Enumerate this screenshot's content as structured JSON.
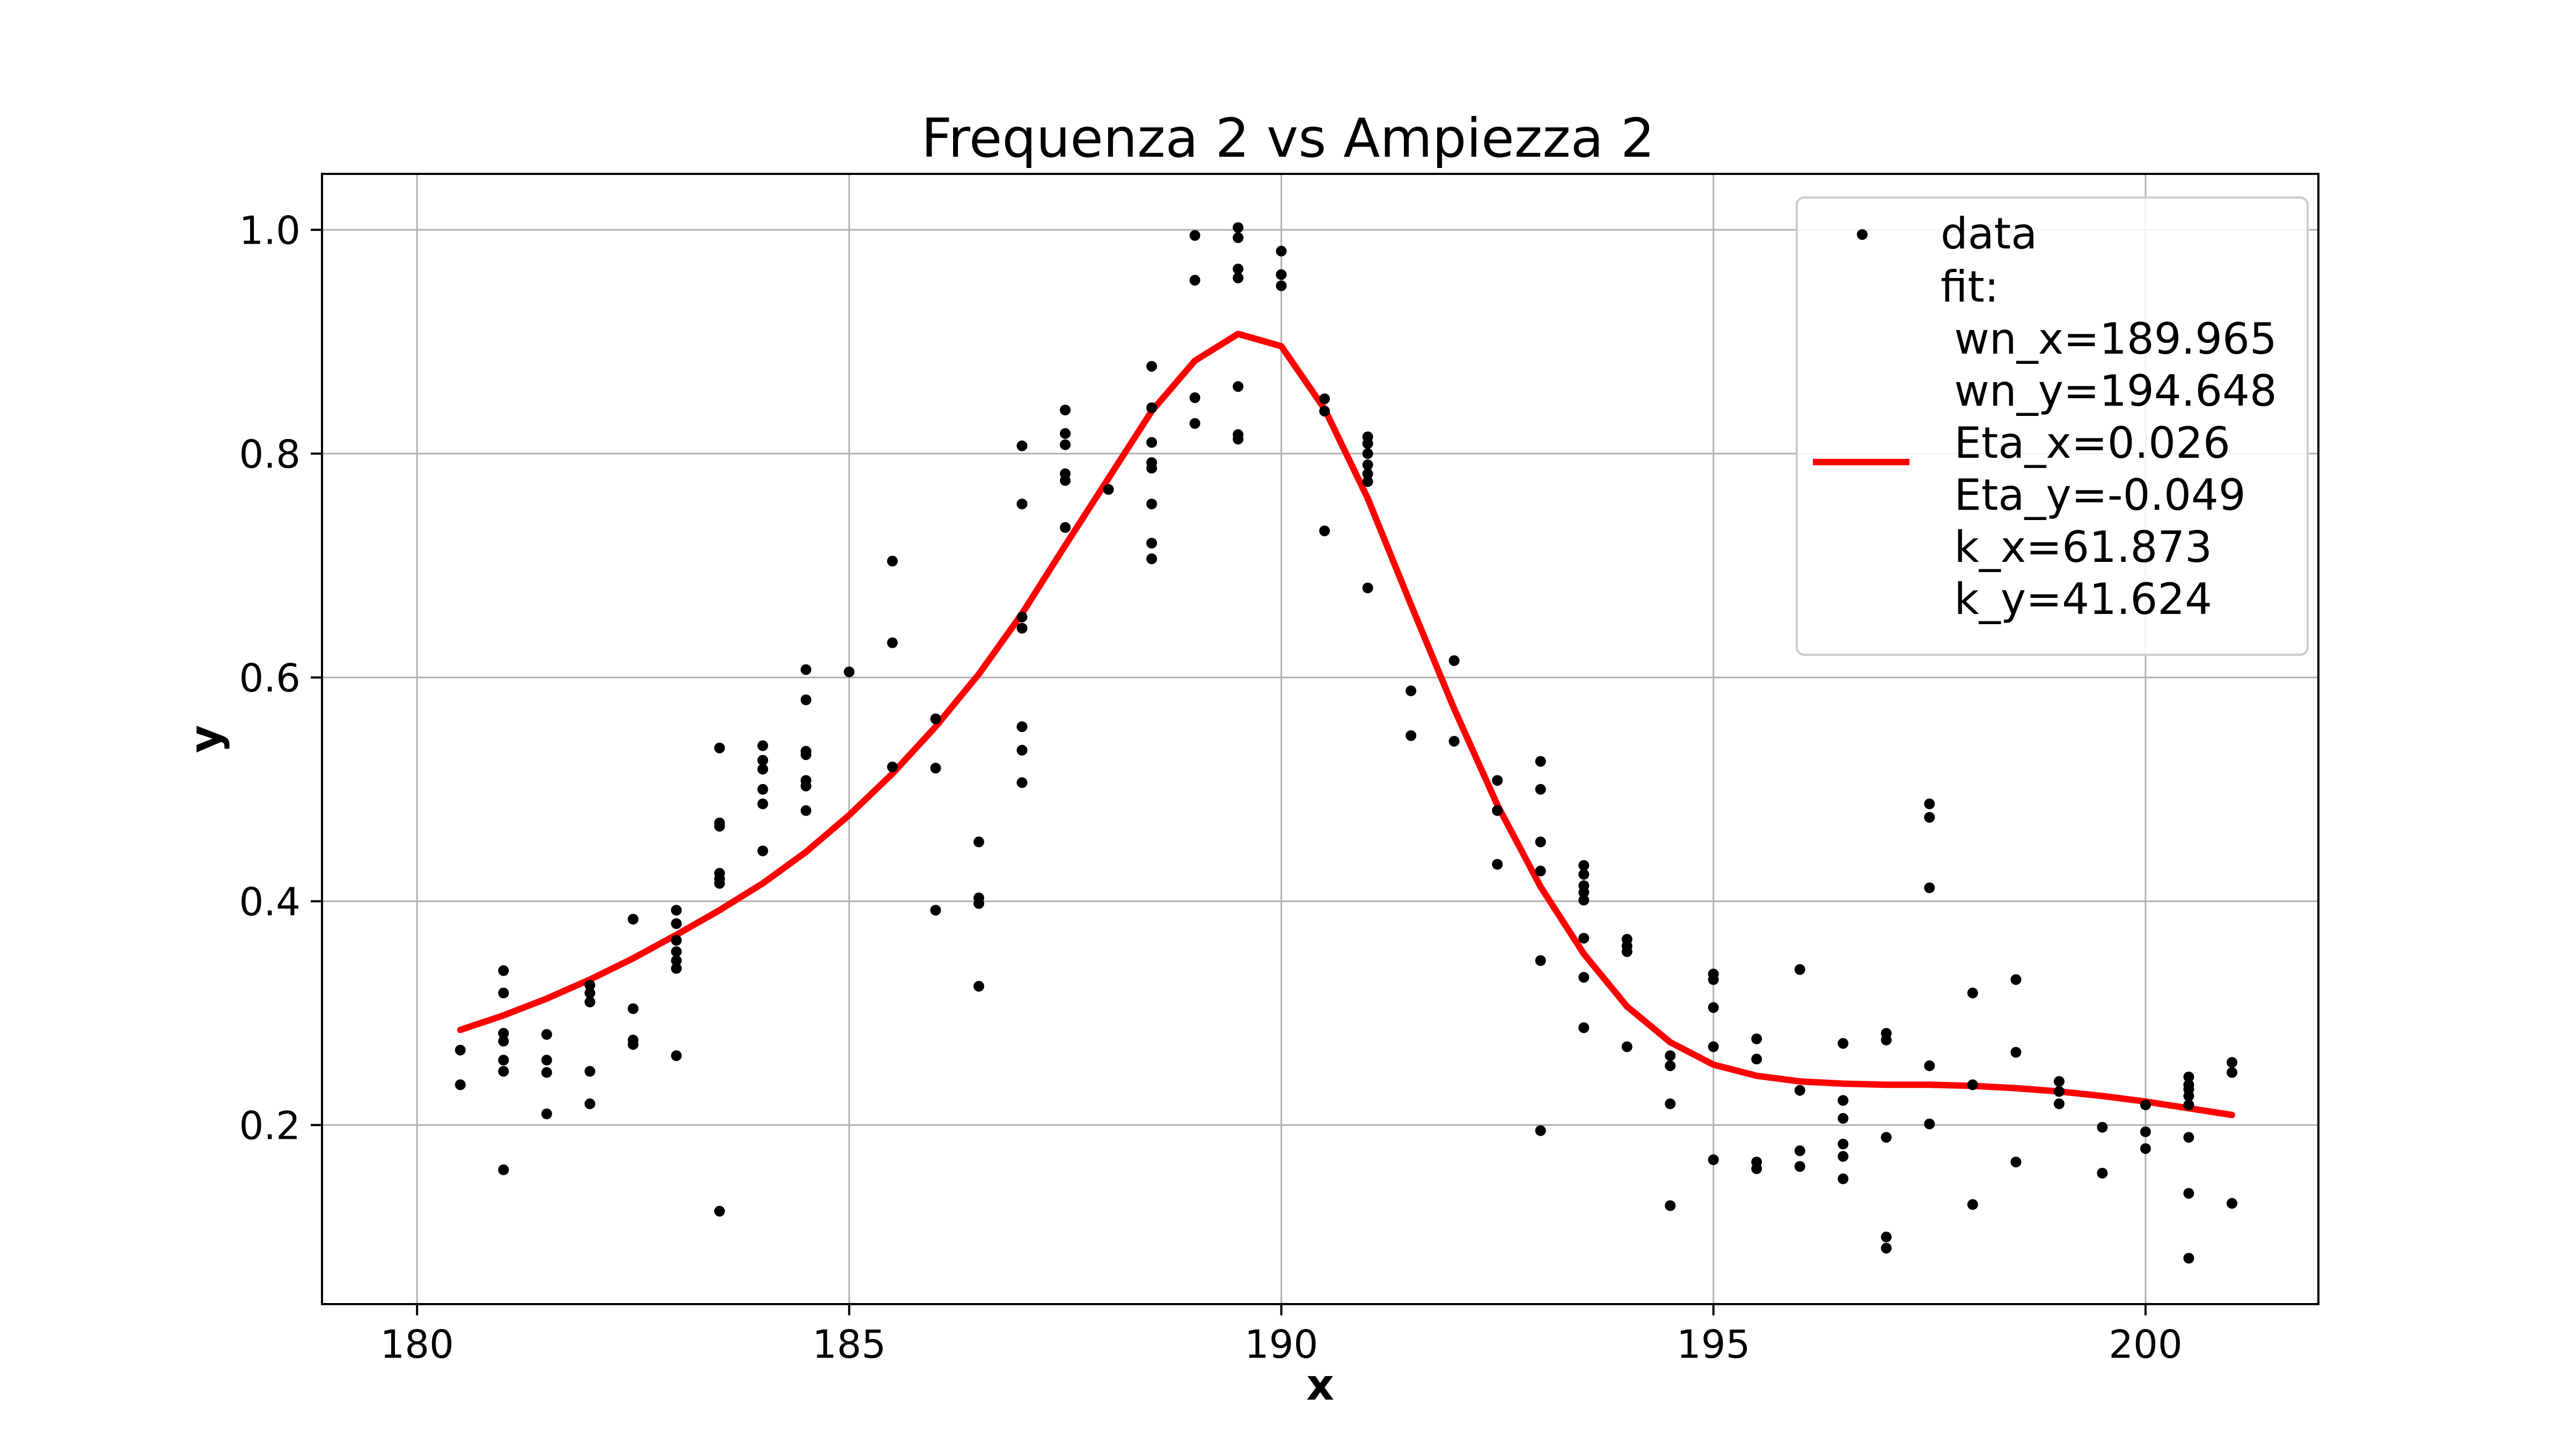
{
  "chart_data": {
    "type": "scatter",
    "title": "Frequenza 2 vs Ampiezza 2",
    "xlabel": "x",
    "ylabel": "y",
    "xlim": [
      178.9,
      202.0
    ],
    "ylim": [
      0.04,
      1.05
    ],
    "xticks": [
      180,
      185,
      190,
      195,
      200
    ],
    "yticks": [
      0.2,
      0.4,
      0.6,
      0.8,
      1.0
    ],
    "xtick_labels": [
      "180",
      "185",
      "190",
      "195",
      "200"
    ],
    "ytick_labels": [
      "0.2",
      "0.4",
      "0.6",
      "0.8",
      "1.0"
    ],
    "grid": true,
    "legend_position": "top-right",
    "colors": {
      "data": "#000000",
      "fit": "#ff0000"
    },
    "series": [
      {
        "name": "data",
        "kind": "points",
        "points": [
          [
            180.5,
            0.267
          ],
          [
            180.5,
            0.236
          ],
          [
            181.0,
            0.338
          ],
          [
            181.0,
            0.318
          ],
          [
            181.0,
            0.282
          ],
          [
            181.0,
            0.275
          ],
          [
            181.0,
            0.258
          ],
          [
            181.0,
            0.248
          ],
          [
            181.0,
            0.16
          ],
          [
            181.5,
            0.281
          ],
          [
            181.5,
            0.258
          ],
          [
            181.5,
            0.247
          ],
          [
            181.5,
            0.21
          ],
          [
            182.0,
            0.325
          ],
          [
            182.0,
            0.318
          ],
          [
            182.0,
            0.31
          ],
          [
            182.0,
            0.248
          ],
          [
            182.0,
            0.219
          ],
          [
            182.5,
            0.384
          ],
          [
            182.5,
            0.304
          ],
          [
            182.5,
            0.276
          ],
          [
            182.5,
            0.272
          ],
          [
            183.0,
            0.392
          ],
          [
            183.0,
            0.38
          ],
          [
            183.0,
            0.365
          ],
          [
            183.0,
            0.355
          ],
          [
            183.0,
            0.347
          ],
          [
            183.0,
            0.34
          ],
          [
            183.0,
            0.262
          ],
          [
            183.5,
            0.537
          ],
          [
            183.5,
            0.47
          ],
          [
            183.5,
            0.467
          ],
          [
            183.5,
            0.425
          ],
          [
            183.5,
            0.42
          ],
          [
            183.5,
            0.416
          ],
          [
            183.5,
            0.123
          ],
          [
            184.0,
            0.539
          ],
          [
            184.0,
            0.526
          ],
          [
            184.0,
            0.518
          ],
          [
            184.0,
            0.5
          ],
          [
            184.0,
            0.487
          ],
          [
            184.0,
            0.445
          ],
          [
            184.5,
            0.607
          ],
          [
            184.5,
            0.58
          ],
          [
            184.5,
            0.534
          ],
          [
            184.5,
            0.531
          ],
          [
            184.5,
            0.508
          ],
          [
            184.5,
            0.503
          ],
          [
            184.5,
            0.481
          ],
          [
            185.0,
            0.605
          ],
          [
            185.5,
            0.704
          ],
          [
            185.5,
            0.631
          ],
          [
            185.5,
            0.52
          ],
          [
            186.0,
            0.563
          ],
          [
            186.0,
            0.519
          ],
          [
            186.0,
            0.392
          ],
          [
            186.5,
            0.453
          ],
          [
            186.5,
            0.403
          ],
          [
            186.5,
            0.398
          ],
          [
            186.5,
            0.324
          ],
          [
            187.0,
            0.807
          ],
          [
            187.0,
            0.755
          ],
          [
            187.0,
            0.654
          ],
          [
            187.0,
            0.644
          ],
          [
            187.0,
            0.556
          ],
          [
            187.0,
            0.535
          ],
          [
            187.0,
            0.506
          ],
          [
            187.5,
            0.839
          ],
          [
            187.5,
            0.818
          ],
          [
            187.5,
            0.808
          ],
          [
            187.5,
            0.782
          ],
          [
            187.5,
            0.776
          ],
          [
            187.5,
            0.734
          ],
          [
            188.0,
            0.768
          ],
          [
            188.5,
            0.878
          ],
          [
            188.5,
            0.841
          ],
          [
            188.5,
            0.81
          ],
          [
            188.5,
            0.792
          ],
          [
            188.5,
            0.787
          ],
          [
            188.5,
            0.755
          ],
          [
            188.5,
            0.72
          ],
          [
            188.5,
            0.706
          ],
          [
            189.0,
            0.995
          ],
          [
            189.0,
            0.955
          ],
          [
            189.0,
            0.85
          ],
          [
            189.0,
            0.827
          ],
          [
            189.5,
            1.002
          ],
          [
            189.5,
            0.993
          ],
          [
            189.5,
            0.965
          ],
          [
            189.5,
            0.957
          ],
          [
            189.5,
            0.86
          ],
          [
            189.5,
            0.817
          ],
          [
            189.5,
            0.813
          ],
          [
            190.0,
            0.981
          ],
          [
            190.0,
            0.96
          ],
          [
            190.0,
            0.95
          ],
          [
            190.5,
            0.849
          ],
          [
            190.5,
            0.838
          ],
          [
            190.5,
            0.731
          ],
          [
            191.0,
            0.815
          ],
          [
            191.0,
            0.809
          ],
          [
            191.0,
            0.8
          ],
          [
            191.0,
            0.79
          ],
          [
            191.0,
            0.782
          ],
          [
            191.0,
            0.775
          ],
          [
            191.0,
            0.68
          ],
          [
            191.5,
            0.588
          ],
          [
            191.5,
            0.548
          ],
          [
            192.0,
            0.615
          ],
          [
            192.0,
            0.543
          ],
          [
            192.5,
            0.508
          ],
          [
            192.5,
            0.481
          ],
          [
            192.5,
            0.433
          ],
          [
            193.0,
            0.525
          ],
          [
            193.0,
            0.5
          ],
          [
            193.0,
            0.453
          ],
          [
            193.0,
            0.427
          ],
          [
            193.0,
            0.347
          ],
          [
            193.0,
            0.195
          ],
          [
            193.5,
            0.432
          ],
          [
            193.5,
            0.424
          ],
          [
            193.5,
            0.414
          ],
          [
            193.5,
            0.408
          ],
          [
            193.5,
            0.401
          ],
          [
            193.5,
            0.367
          ],
          [
            193.5,
            0.332
          ],
          [
            193.5,
            0.287
          ],
          [
            194.0,
            0.366
          ],
          [
            194.0,
            0.36
          ],
          [
            194.0,
            0.355
          ],
          [
            194.0,
            0.27
          ],
          [
            194.5,
            0.262
          ],
          [
            194.5,
            0.253
          ],
          [
            194.5,
            0.219
          ],
          [
            194.5,
            0.128
          ],
          [
            195.0,
            0.335
          ],
          [
            195.0,
            0.33
          ],
          [
            195.0,
            0.305
          ],
          [
            195.0,
            0.27
          ],
          [
            195.0,
            0.169
          ],
          [
            195.5,
            0.277
          ],
          [
            195.5,
            0.259
          ],
          [
            195.5,
            0.167
          ],
          [
            195.5,
            0.161
          ],
          [
            196.0,
            0.339
          ],
          [
            196.0,
            0.231
          ],
          [
            196.0,
            0.177
          ],
          [
            196.0,
            0.163
          ],
          [
            196.5,
            0.273
          ],
          [
            196.5,
            0.222
          ],
          [
            196.5,
            0.206
          ],
          [
            196.5,
            0.183
          ],
          [
            196.5,
            0.172
          ],
          [
            196.5,
            0.152
          ],
          [
            197.0,
            0.282
          ],
          [
            197.0,
            0.276
          ],
          [
            197.0,
            0.189
          ],
          [
            197.0,
            0.1
          ],
          [
            197.0,
            0.09
          ],
          [
            197.5,
            0.487
          ],
          [
            197.5,
            0.475
          ],
          [
            197.5,
            0.412
          ],
          [
            197.5,
            0.253
          ],
          [
            197.5,
            0.201
          ],
          [
            198.0,
            0.318
          ],
          [
            198.0,
            0.236
          ],
          [
            198.0,
            0.129
          ],
          [
            198.5,
            0.33
          ],
          [
            198.5,
            0.265
          ],
          [
            198.5,
            0.167
          ],
          [
            199.0,
            0.239
          ],
          [
            199.0,
            0.23
          ],
          [
            199.0,
            0.219
          ],
          [
            199.5,
            0.198
          ],
          [
            199.5,
            0.157
          ],
          [
            200.0,
            0.218
          ],
          [
            200.0,
            0.194
          ],
          [
            200.0,
            0.179
          ],
          [
            200.5,
            0.243
          ],
          [
            200.5,
            0.236
          ],
          [
            200.5,
            0.232
          ],
          [
            200.5,
            0.226
          ],
          [
            200.5,
            0.218
          ],
          [
            200.5,
            0.189
          ],
          [
            200.5,
            0.139
          ],
          [
            200.5,
            0.081
          ],
          [
            201.0,
            0.256
          ],
          [
            201.0,
            0.247
          ],
          [
            201.0,
            0.13
          ]
        ]
      },
      {
        "name": "fit:\n wn_x=189.965\n wn_y=194.648\n Eta_x=0.026\n Eta_y=-0.049\n k_x=61.873\n k_y=41.624",
        "kind": "line",
        "x": [
          180.5,
          181.0,
          181.5,
          182.0,
          182.5,
          183.0,
          183.5,
          184.0,
          184.5,
          185.0,
          185.5,
          186.0,
          186.5,
          187.0,
          187.5,
          188.0,
          188.5,
          189.0,
          189.5,
          190.0,
          190.5,
          191.0,
          191.5,
          192.0,
          192.5,
          193.0,
          193.5,
          194.0,
          194.5,
          195.0,
          195.5,
          196.0,
          196.5,
          197.0,
          197.5,
          198.0,
          198.5,
          199.0,
          199.5,
          200.0,
          200.5,
          201.0
        ],
        "y": [
          0.285,
          0.298,
          0.313,
          0.33,
          0.349,
          0.37,
          0.392,
          0.416,
          0.444,
          0.477,
          0.514,
          0.556,
          0.603,
          0.657,
          0.718,
          0.778,
          0.838,
          0.883,
          0.907,
          0.896,
          0.84,
          0.76,
          0.665,
          0.572,
          0.486,
          0.413,
          0.353,
          0.306,
          0.274,
          0.254,
          0.244,
          0.239,
          0.237,
          0.236,
          0.236,
          0.235,
          0.233,
          0.23,
          0.226,
          0.221,
          0.215,
          0.209
        ]
      }
    ],
    "legend": {
      "data_label": "data",
      "fit_lines": [
        "fit:",
        " wn_x=189.965",
        " wn_y=194.648",
        " Eta_x=0.026",
        " Eta_y=-0.049",
        " k_x=61.873",
        " k_y=41.624"
      ]
    }
  }
}
